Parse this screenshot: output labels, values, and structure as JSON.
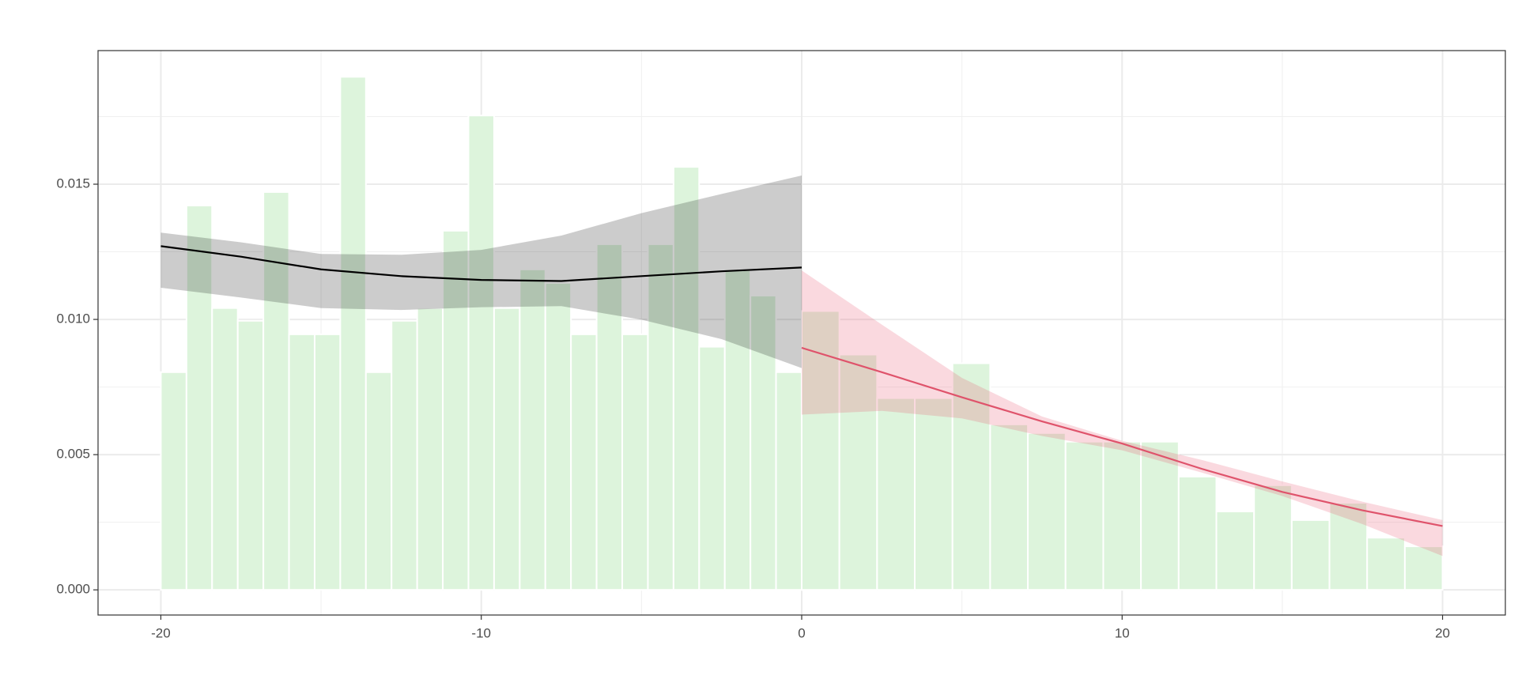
{
  "chart_data": {
    "type": "histogram",
    "bins": [
      -20,
      -19.2,
      -18.4,
      -17.6,
      -16.8,
      -16,
      -15.2,
      -14.4,
      -13.6,
      -12.8,
      -12,
      -11.2,
      -10.4,
      -9.6,
      -8.8,
      -8,
      -7.2,
      -6.4,
      -5.6,
      -4.8,
      -4,
      -3.2,
      -2.4,
      -1.6,
      -0.8,
      0,
      1.176,
      2.353,
      3.529,
      4.706,
      5.882,
      7.059,
      8.235,
      9.412,
      10.588,
      11.765,
      12.941,
      14.118,
      15.294,
      16.471,
      17.647,
      18.824,
      20
    ],
    "values": [
      0.00805,
      0.01421,
      0.01042,
      0.00995,
      0.01471,
      0.00945,
      0.00945,
      0.01897,
      0.00805,
      0.00995,
      0.01042,
      0.01328,
      0.01754,
      0.01042,
      0.01185,
      0.01135,
      0.00945,
      0.01278,
      0.00945,
      0.01278,
      0.01564,
      0.00899,
      0.01185,
      0.01088,
      0.00805,
      0.01031,
      0.0087,
      0.00709,
      0.00709,
      0.00838,
      0.00612,
      0.0058,
      0.00548,
      0.00548,
      0.00548,
      0.00419,
      0.0029,
      0.00387,
      0.00258,
      0.00322,
      0.00193,
      0.00161
    ],
    "color": "#ddf4dc",
    "series": [
      {
        "color": "#000000",
        "band_color": "rgba(0,0,0,0.2)",
        "x": [
          -20,
          -17.5,
          -15,
          -12.5,
          -10,
          -7.5,
          -5,
          -2.5,
          0
        ],
        "values": [
          0.01271,
          0.01232,
          0.01185,
          0.0116,
          0.01146,
          0.01142,
          0.0116,
          0.01178,
          0.01192
        ],
        "lower": [
          0.01117,
          0.01081,
          0.01042,
          0.01035,
          0.01045,
          0.01049,
          0.00999,
          0.00927,
          0.0082
        ],
        "upper": [
          0.01321,
          0.01285,
          0.01242,
          0.01239,
          0.01257,
          0.0131,
          0.01393,
          0.01464,
          0.01532
        ]
      },
      {
        "color": "#df536b",
        "band_color": "rgba(232,84,110,0.22)",
        "x": [
          0,
          2.5,
          5,
          7.5,
          10,
          12.5,
          15,
          17.5,
          20
        ],
        "values": [
          0.00895,
          0.00805,
          0.00712,
          0.00623,
          0.00541,
          0.00447,
          0.00362,
          0.00294,
          0.00236
        ],
        "lower": [
          0.00648,
          0.00662,
          0.00634,
          0.00569,
          0.00516,
          0.00433,
          0.00347,
          0.00243,
          0.00125
        ],
        "upper": [
          0.01181,
          0.00981,
          0.00784,
          0.00641,
          0.00551,
          0.0048,
          0.00401,
          0.00326,
          0.00258
        ]
      }
    ],
    "xlim": [
      -21.96,
      21.96
    ],
    "ylim": [
      -0.00093,
      0.01994
    ],
    "xticks": [
      -20,
      -10,
      0,
      10,
      20
    ],
    "yticks": [
      {
        "value": 0,
        "label": "0.000"
      },
      {
        "value": 0.005,
        "label": "0.005"
      },
      {
        "value": 0.01,
        "label": "0.010"
      },
      {
        "value": 0.015,
        "label": "0.015"
      }
    ],
    "x_minor_grid": [
      -15,
      -5,
      5,
      15
    ],
    "y_minor_grid": [
      0.0025,
      0.0075,
      0.0125,
      0.0175
    ],
    "grid": true
  }
}
